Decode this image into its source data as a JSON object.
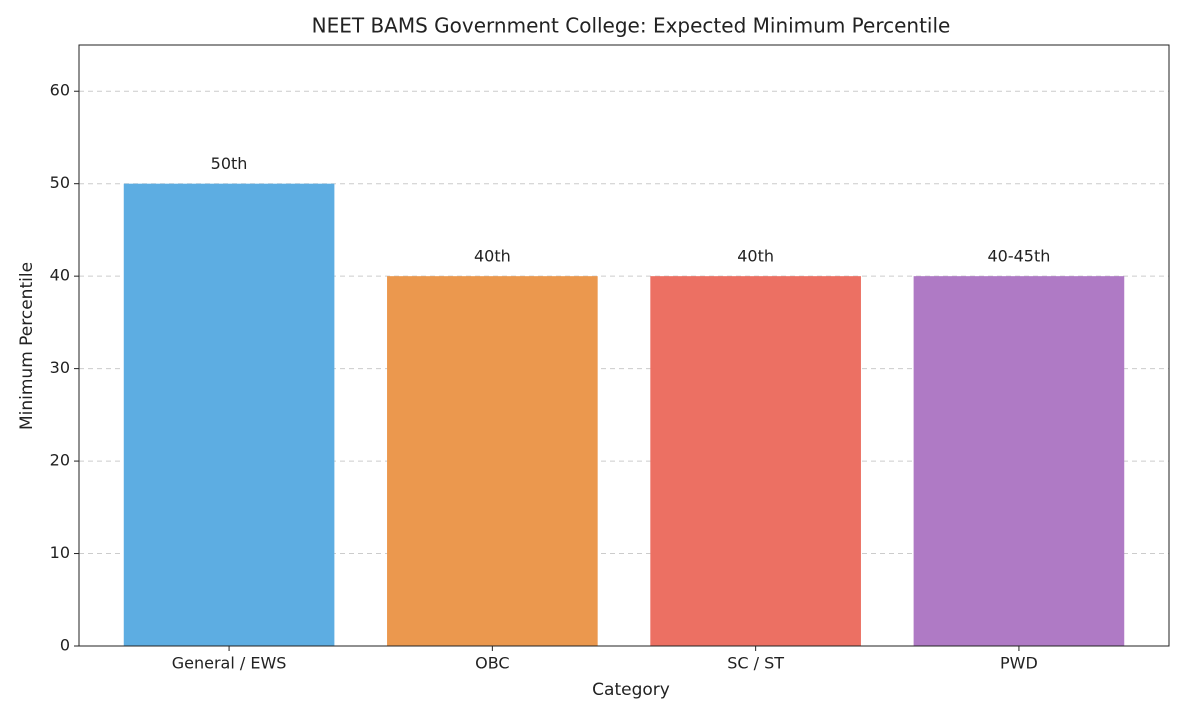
{
  "chart_data": {
    "type": "bar",
    "title": "NEET BAMS Government College: Expected Minimum Percentile",
    "x_label": "Category",
    "y_label": "Minimum Percentile",
    "categories": [
      "General / EWS",
      "OBC",
      "SC / ST",
      "PWD"
    ],
    "values": [
      50,
      40,
      40,
      40
    ],
    "value_labels": [
      "50th",
      "40th",
      "40th",
      "40-45th"
    ],
    "colors": [
      "#5dade2",
      "#eb984e",
      "#ec7063",
      "#af7ac5"
    ],
    "ylim": [
      0,
      65
    ],
    "yticks": [
      0,
      10,
      20,
      30,
      40,
      50,
      60
    ],
    "grid": true
  }
}
